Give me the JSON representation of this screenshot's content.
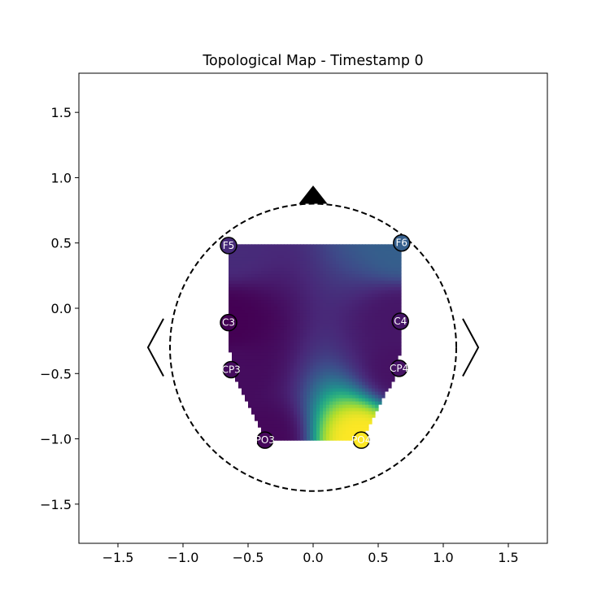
{
  "chart_data": {
    "type": "heatmap",
    "title": "Topological Map - Timestamp 0",
    "xlabel": "",
    "ylabel": "",
    "xlim": [
      -1.8,
      1.8
    ],
    "ylim": [
      -1.8,
      1.8
    ],
    "xticks": [
      -1.5,
      -1.0,
      -0.5,
      0.0,
      0.5,
      1.0,
      1.5
    ],
    "yticks": [
      -1.5,
      -1.0,
      -0.5,
      0.0,
      0.5,
      1.0,
      1.5
    ],
    "xtick_labels": [
      "−1.5",
      "−1.0",
      "−0.5",
      "0.0",
      "0.5",
      "1.0",
      "1.5"
    ],
    "ytick_labels": [
      "−1.5",
      "−1.0",
      "−0.5",
      "0.0",
      "0.5",
      "1.0",
      "1.5"
    ],
    "grid": false,
    "colormap": "viridis",
    "head": {
      "center": [
        0.0,
        -0.3
      ],
      "radius": 1.1,
      "nose_tip": [
        0.0,
        0.94
      ]
    },
    "electrodes": [
      {
        "name": "F5",
        "x": -0.65,
        "y": 0.48,
        "value": 0.12
      },
      {
        "name": "F6",
        "x": 0.68,
        "y": 0.5,
        "value": 0.3
      },
      {
        "name": "C3",
        "x": -0.65,
        "y": -0.11,
        "value": 0.0
      },
      {
        "name": "C4",
        "x": 0.67,
        "y": -0.1,
        "value": 0.06
      },
      {
        "name": "CP3",
        "x": -0.63,
        "y": -0.47,
        "value": 0.03
      },
      {
        "name": "CP4",
        "x": 0.66,
        "y": -0.46,
        "value": 0.05
      },
      {
        "name": "PO3",
        "x": -0.37,
        "y": -1.01,
        "value": 0.02
      },
      {
        "name": "PO4",
        "x": 0.37,
        "y": -1.01,
        "value": 1.0
      }
    ]
  }
}
